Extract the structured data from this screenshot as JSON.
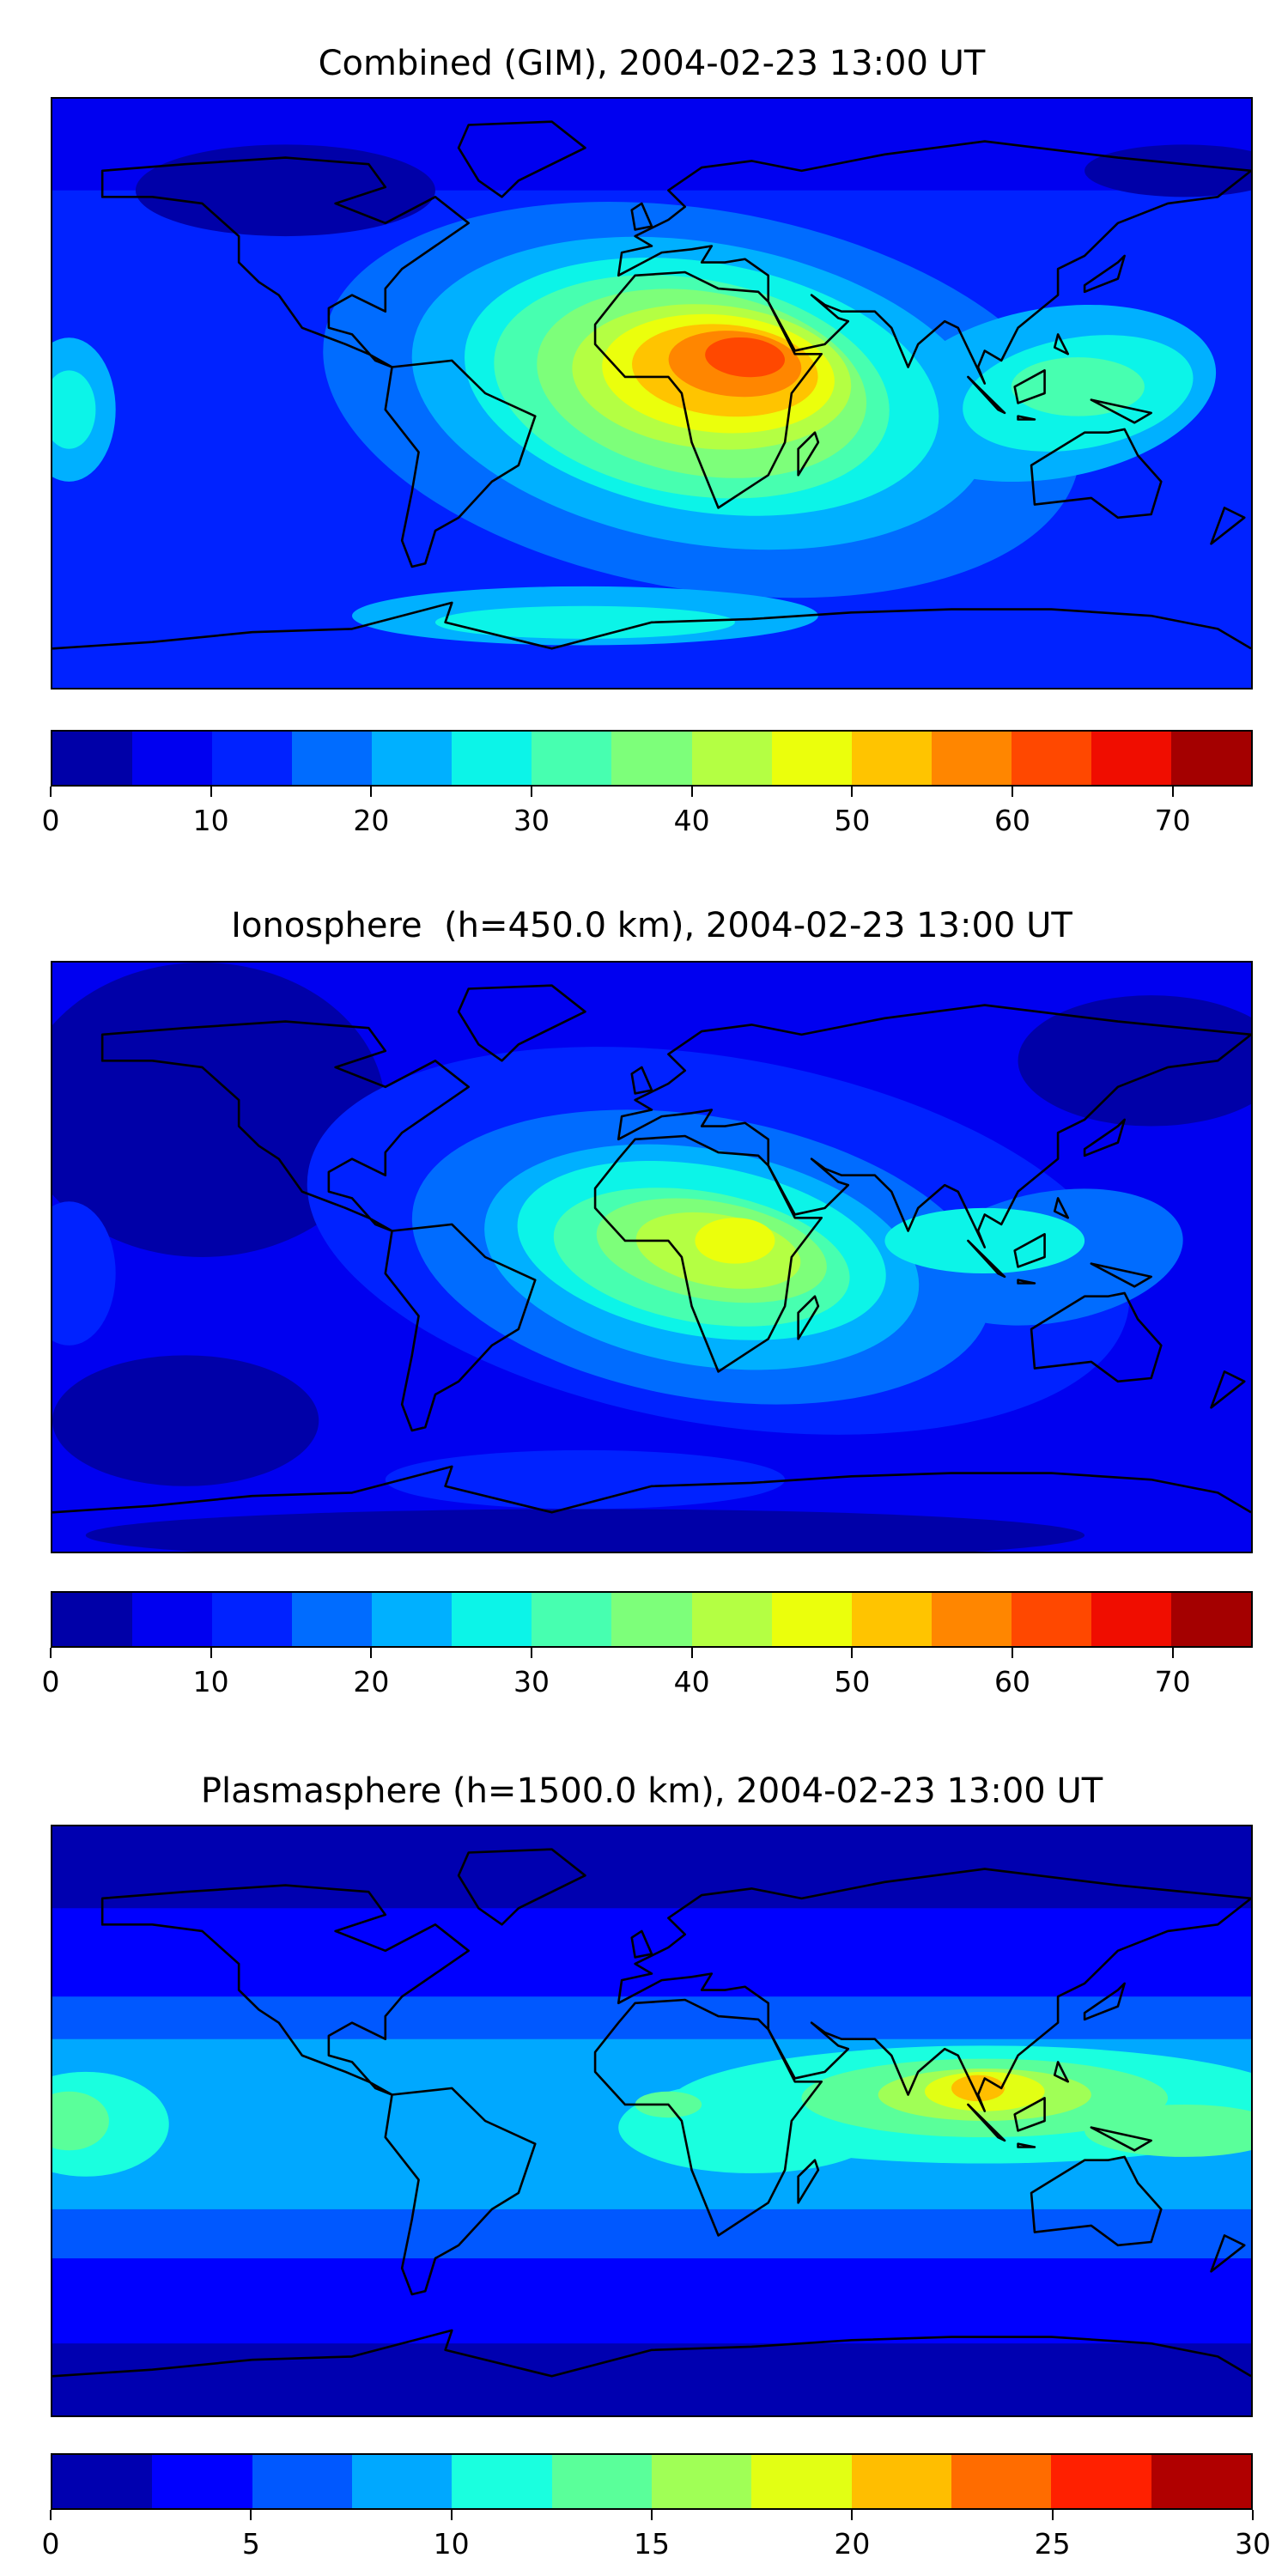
{
  "chart_data": [
    {
      "type": "heatmap",
      "subtype": "filled-contour world map",
      "title": "Combined (GIM), 2004-02-23 13:00 UT",
      "levels": [
        0,
        5,
        10,
        15,
        20,
        25,
        30,
        35,
        40,
        45,
        50,
        55,
        60,
        65,
        70,
        75
      ],
      "colors": [
        "#0000a8",
        "#0000f0",
        "#0022ff",
        "#006cff",
        "#00b0ff",
        "#0cf4e8",
        "#47ffb0",
        "#7dff7a",
        "#b4ff43",
        "#ebff0c",
        "#ffc400",
        "#ff8600",
        "#ff4800",
        "#f00d00",
        "#a40000"
      ],
      "colorbar_ticks": [
        "0",
        "10",
        "20",
        "30",
        "40",
        "50",
        "60",
        "70"
      ],
      "colorbar_tick_values": [
        0,
        10,
        20,
        30,
        40,
        50,
        60,
        70
      ],
      "colorbar_range": [
        0,
        75
      ],
      "max_region": "central Africa, 60-65",
      "min_region": "northern Canada / Arctic, 0-5"
    },
    {
      "type": "heatmap",
      "subtype": "filled-contour world map",
      "title": "Ionosphere  (h=450.0 km), 2004-02-23 13:00 UT",
      "levels": [
        0,
        5,
        10,
        15,
        20,
        25,
        30,
        35,
        40,
        45,
        50,
        55,
        60,
        65,
        70,
        75
      ],
      "colors": [
        "#0000a8",
        "#0000f0",
        "#0022ff",
        "#006cff",
        "#00b0ff",
        "#0cf4e8",
        "#47ffb0",
        "#7dff7a",
        "#b4ff43",
        "#ebff0c",
        "#ffc400",
        "#ff8600",
        "#ff4800",
        "#f00d00",
        "#a40000"
      ],
      "colorbar_ticks": [
        "0",
        "10",
        "20",
        "30",
        "40",
        "50",
        "60",
        "70"
      ],
      "colorbar_tick_values": [
        0,
        10,
        20,
        30,
        40,
        50,
        60,
        70
      ],
      "colorbar_range": [
        0,
        75
      ],
      "max_region": "central Africa, 45-50",
      "min_region": "northern Pacific / Arctic, 0-5"
    },
    {
      "type": "heatmap",
      "subtype": "filled-contour world map",
      "title": "Plasmasphere (h=1500.0 km), 2004-02-23 13:00 UT",
      "levels": [
        0,
        2.5,
        5,
        7.5,
        10,
        12.5,
        15,
        17.5,
        20,
        22.5,
        25,
        27.5,
        30
      ],
      "colors": [
        "#0000b0",
        "#0000ff",
        "#0058ff",
        "#00a8ff",
        "#1affdf",
        "#5aff9a",
        "#a0ff56",
        "#e2ff14",
        "#ffbe00",
        "#ff6c00",
        "#ff2000",
        "#b00000"
      ],
      "colorbar_ticks": [
        "0",
        "5",
        "10",
        "15",
        "20",
        "25",
        "30"
      ],
      "colorbar_tick_values": [
        0,
        5,
        10,
        15,
        20,
        25,
        30
      ],
      "colorbar_range": [
        0,
        30
      ],
      "max_region": "Southeast Asia, 20-22.5",
      "min_region": "polar regions, 0-2.5"
    }
  ]
}
